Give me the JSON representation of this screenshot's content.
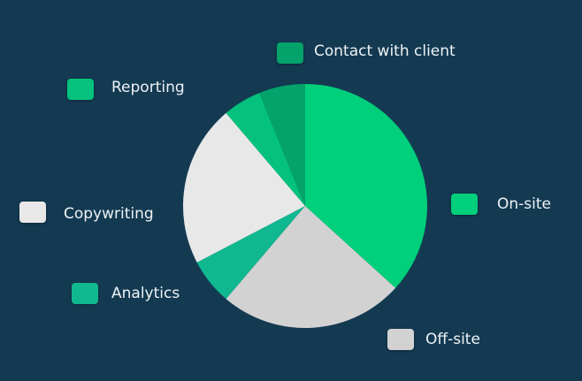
{
  "colors": {
    "background": "#143a52"
  },
  "chart_data": {
    "type": "pie",
    "title": "",
    "slices": [
      {
        "label": "On-site",
        "value": 36,
        "color": "#00cf7b"
      },
      {
        "label": "Off-site",
        "value": 24,
        "color": "#d3d2d3"
      },
      {
        "label": "Analytics",
        "value": 6,
        "color": "#10b88f"
      },
      {
        "label": "Copywriting",
        "value": 21,
        "color": "#e8e8e9"
      },
      {
        "label": "Reporting",
        "value": 5,
        "color": "#04c27d"
      },
      {
        "label": "Contact with client",
        "value": 6,
        "color": "#03a36b"
      }
    ],
    "legend": "around"
  }
}
